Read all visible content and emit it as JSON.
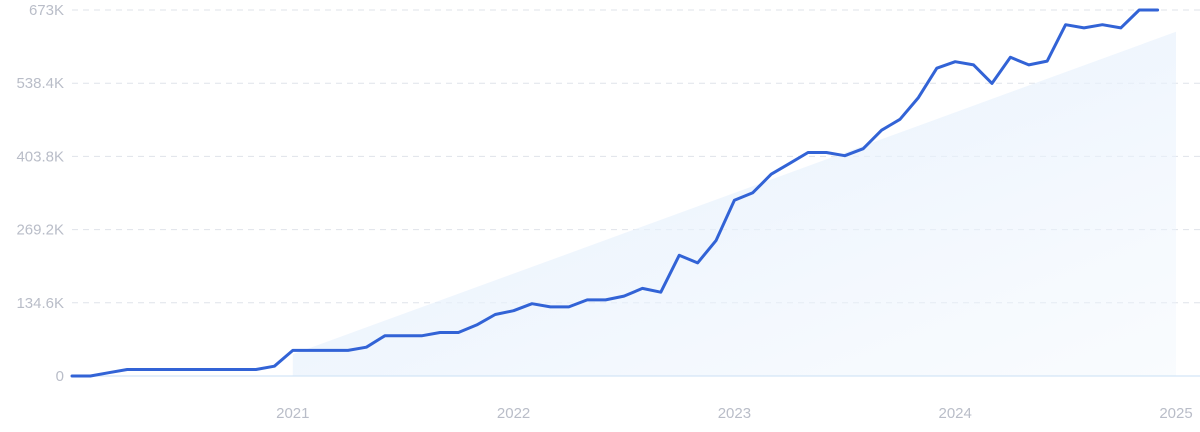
{
  "chart_data": {
    "type": "line",
    "title": "",
    "xlabel": "",
    "ylabel": "",
    "ylim": [
      0,
      673000
    ],
    "xlim": [
      "2020-01",
      "2025-01"
    ],
    "grid": true,
    "legend": "none",
    "y_ticks": [
      {
        "value": 0,
        "label": "0"
      },
      {
        "value": 134600,
        "label": "134.6K"
      },
      {
        "value": 269200,
        "label": "269.2K"
      },
      {
        "value": 403800,
        "label": "403.8K"
      },
      {
        "value": 538400,
        "label": "538.4K"
      },
      {
        "value": 673000,
        "label": "673K"
      }
    ],
    "x_ticks": [
      {
        "value": "2021-01",
        "label": "2021"
      },
      {
        "value": "2022-01",
        "label": "2022"
      },
      {
        "value": "2023-01",
        "label": "2023"
      },
      {
        "value": "2024-01",
        "label": "2024"
      },
      {
        "value": "2025-01",
        "label": "2025"
      }
    ],
    "series": [
      {
        "color": "#3263d6",
        "points": [
          [
            "2020-01",
            0
          ],
          [
            "2020-02",
            0
          ],
          [
            "2020-03",
            6000
          ],
          [
            "2020-04",
            12000
          ],
          [
            "2020-05",
            12000
          ],
          [
            "2020-06",
            12000
          ],
          [
            "2020-07",
            12000
          ],
          [
            "2020-08",
            12000
          ],
          [
            "2020-09",
            12000
          ],
          [
            "2020-10",
            12000
          ],
          [
            "2020-11",
            12000
          ],
          [
            "2020-12",
            18000
          ],
          [
            "2021-01",
            47000
          ],
          [
            "2021-02",
            47000
          ],
          [
            "2021-03",
            47000
          ],
          [
            "2021-04",
            47000
          ],
          [
            "2021-05",
            53000
          ],
          [
            "2021-06",
            74000
          ],
          [
            "2021-07",
            74000
          ],
          [
            "2021-08",
            74000
          ],
          [
            "2021-09",
            80000
          ],
          [
            "2021-10",
            80000
          ],
          [
            "2021-11",
            94000
          ],
          [
            "2021-12",
            113000
          ],
          [
            "2022-01",
            120000
          ],
          [
            "2022-02",
            133000
          ],
          [
            "2022-03",
            127000
          ],
          [
            "2022-04",
            127000
          ],
          [
            "2022-05",
            140000
          ],
          [
            "2022-06",
            140000
          ],
          [
            "2022-07",
            147000
          ],
          [
            "2022-08",
            161000
          ],
          [
            "2022-09",
            154000
          ],
          [
            "2022-10",
            222000
          ],
          [
            "2022-11",
            208000
          ],
          [
            "2022-12",
            249000
          ],
          [
            "2023-01",
            323000
          ],
          [
            "2023-02",
            337000
          ],
          [
            "2023-03",
            371000
          ],
          [
            "2023-04",
            391000
          ],
          [
            "2023-05",
            411000
          ],
          [
            "2023-06",
            411000
          ],
          [
            "2023-07",
            405000
          ],
          [
            "2023-08",
            418000
          ],
          [
            "2023-09",
            452000
          ],
          [
            "2023-10",
            472000
          ],
          [
            "2023-11",
            512000
          ],
          [
            "2023-12",
            566000
          ],
          [
            "2024-01",
            578000
          ],
          [
            "2024-02",
            572000
          ],
          [
            "2024-03",
            538000
          ],
          [
            "2024-04",
            586000
          ],
          [
            "2024-05",
            572000
          ],
          [
            "2024-06",
            579000
          ],
          [
            "2024-07",
            646000
          ],
          [
            "2024-08",
            640000
          ],
          [
            "2024-09",
            646000
          ],
          [
            "2024-10",
            640000
          ],
          [
            "2024-11",
            673000
          ],
          [
            "2024-12",
            673000
          ]
        ]
      }
    ],
    "trend": {
      "color": "#e3effc",
      "points": [
        [
          "2021-01",
          40000
        ],
        [
          "2025-01",
          633000
        ]
      ]
    }
  }
}
